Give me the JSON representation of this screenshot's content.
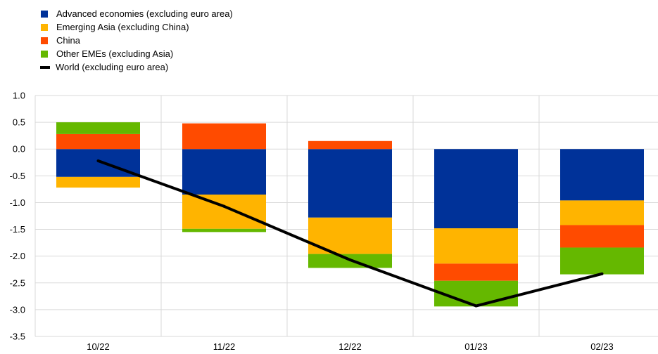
{
  "chart_data": {
    "type": "bar",
    "stacked": true,
    "categories": [
      "10/22",
      "11/22",
      "12/22",
      "01/23",
      "02/23"
    ],
    "ylim": [
      -3.5,
      1.0
    ],
    "yticks": [
      1.0,
      0.5,
      0.0,
      -0.5,
      -1.0,
      -1.5,
      -2.0,
      -2.5,
      -3.0,
      -3.5
    ],
    "ytick_labels": [
      "1.0",
      "0.5",
      "0.0",
      "-0.5",
      "-1.0",
      "-1.5",
      "-2.0",
      "-2.5",
      "-3.0",
      "-3.5"
    ],
    "grid": true,
    "legend_position": "top-left",
    "series": [
      {
        "name": "Advanced economies (excluding euro area)",
        "color": "#003299",
        "values": [
          -0.52,
          -0.85,
          -1.28,
          -1.48,
          -0.96
        ]
      },
      {
        "name": "Emerging Asia (excluding China)",
        "color": "#FFB400",
        "values": [
          -0.2,
          -0.64,
          -0.68,
          -0.66,
          -0.46
        ]
      },
      {
        "name": "China",
        "color": "#FF4B00",
        "values": [
          0.28,
          0.48,
          0.15,
          -0.32,
          -0.42
        ]
      },
      {
        "name": "Other EMEs (excluding Asia)",
        "color": "#65B800",
        "values": [
          0.22,
          -0.06,
          -0.26,
          -0.48,
          -0.5
        ]
      }
    ],
    "line": {
      "name": "World (excluding euro area)",
      "color": "#000000",
      "values": [
        -0.22,
        -1.07,
        -2.07,
        -2.93,
        -2.33
      ]
    }
  }
}
